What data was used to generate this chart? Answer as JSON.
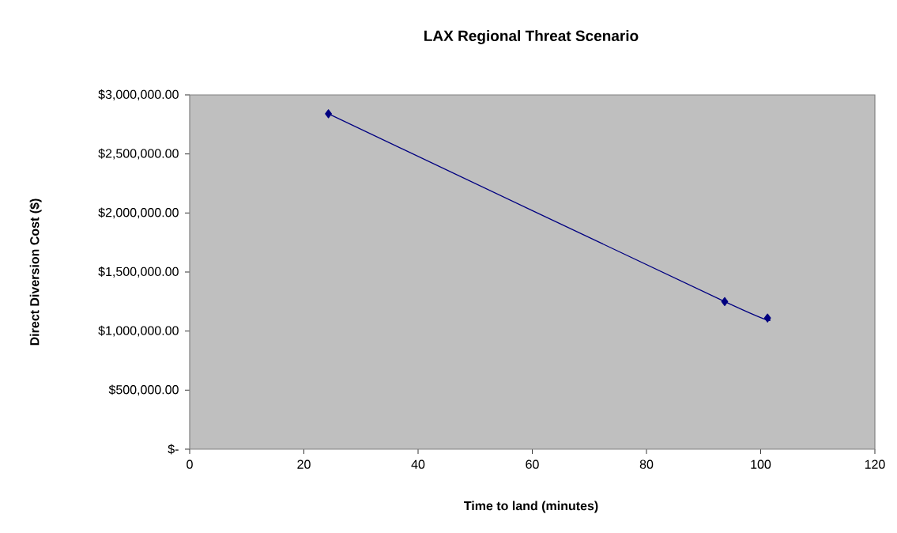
{
  "chart_data": {
    "type": "line",
    "title": "LAX Regional Threat Scenario",
    "xlabel": "Time to land (minutes)",
    "ylabel": "Direct Diversion Cost ($)",
    "x": [
      24.3,
      93.7,
      101.2
    ],
    "series": [
      {
        "color": "#000080",
        "values": [
          2840000,
          1250000,
          1110000
        ]
      }
    ],
    "xlim": [
      0,
      120
    ],
    "xticks": [
      0,
      20,
      40,
      60,
      80,
      100,
      120
    ],
    "ylim": [
      0,
      3000000
    ],
    "yticks": [
      {
        "value": 0,
        "label": "$-"
      },
      {
        "value": 500000,
        "label": "$500,000.00"
      },
      {
        "value": 1000000,
        "label": "$1,000,000.00"
      },
      {
        "value": 1500000,
        "label": "$1,500,000.00"
      },
      {
        "value": 2000000,
        "label": "$2,000,000.00"
      },
      {
        "value": 2500000,
        "label": "$2,500,000.00"
      },
      {
        "value": 3000000,
        "label": "$3,000,000.00"
      }
    ],
    "grid": false,
    "legend": false,
    "marker": "diamond",
    "line_style": "solid"
  }
}
